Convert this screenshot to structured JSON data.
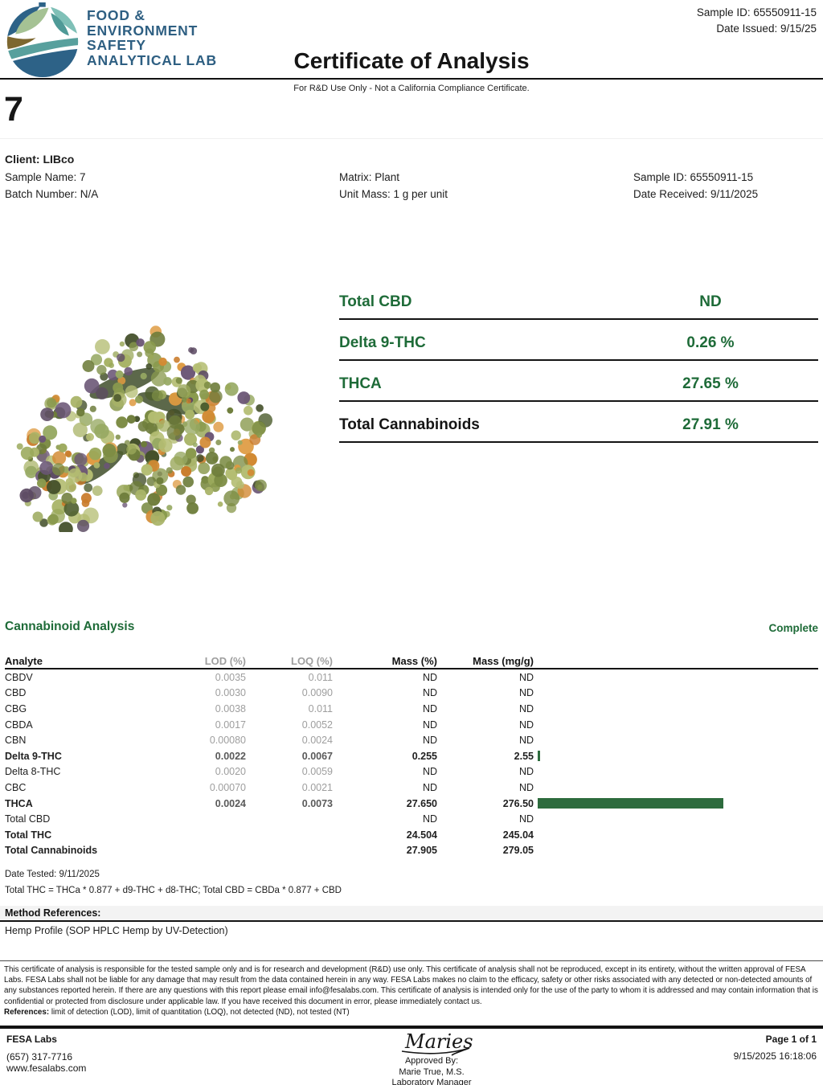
{
  "header": {
    "logo_lines": [
      "FOOD &",
      "ENVIRONMENT",
      "SAFETY",
      "ANALYTICAL LAB"
    ],
    "title": "Certificate of Analysis",
    "subtitle": "For R&D Use Only - Not a California Compliance Certificate.",
    "sample_id": "Sample ID: 65550911-15",
    "date_issued": "Date Issued: 9/15/25"
  },
  "sample": {
    "big_name": "7",
    "client": "Client: LIBco",
    "sample_name": "Sample Name: 7",
    "batch_number": "Batch Number: N/A",
    "matrix": "Matrix: Plant",
    "unit_mass": "Unit Mass: 1 g per unit",
    "sample_id": "Sample ID: 65550911-15",
    "date_received": "Date Received: 9/11/2025"
  },
  "summary": {
    "rows": [
      {
        "label": "Total CBD",
        "value": "ND",
        "label_color": "green"
      },
      {
        "label": "Delta 9-THC",
        "value": "0.26 %",
        "label_color": "green"
      },
      {
        "label": "THCA",
        "value": "27.65 %",
        "label_color": "green"
      },
      {
        "label": "Total Cannabinoids",
        "value": "27.91 %",
        "label_color": "black"
      }
    ]
  },
  "analysis": {
    "section_title": "Cannabinoid Analysis",
    "status": "Complete",
    "columns": [
      "Analyte",
      "LOD (%)",
      "LOQ (%)",
      "Mass (%)",
      "Mass (mg/g)"
    ],
    "rows": [
      {
        "analyte": "CBDV",
        "lod": "0.0035",
        "loq": "0.011",
        "mass_pct": "ND",
        "mass_mgg": "ND",
        "bold": false,
        "bar": 0
      },
      {
        "analyte": "CBD",
        "lod": "0.0030",
        "loq": "0.0090",
        "mass_pct": "ND",
        "mass_mgg": "ND",
        "bold": false,
        "bar": 0
      },
      {
        "analyte": "CBG",
        "lod": "0.0038",
        "loq": "0.011",
        "mass_pct": "ND",
        "mass_mgg": "ND",
        "bold": false,
        "bar": 0
      },
      {
        "analyte": "CBDA",
        "lod": "0.0017",
        "loq": "0.0052",
        "mass_pct": "ND",
        "mass_mgg": "ND",
        "bold": false,
        "bar": 0
      },
      {
        "analyte": "CBN",
        "lod": "0.00080",
        "loq": "0.0024",
        "mass_pct": "ND",
        "mass_mgg": "ND",
        "bold": false,
        "bar": 0
      },
      {
        "analyte": "Delta 9-THC",
        "lod": "0.0022",
        "loq": "0.0067",
        "mass_pct": "0.255",
        "mass_mgg": "2.55",
        "bold": true,
        "bar": 2.55
      },
      {
        "analyte": "Delta 8-THC",
        "lod": "0.0020",
        "loq": "0.0059",
        "mass_pct": "ND",
        "mass_mgg": "ND",
        "bold": false,
        "bar": 0
      },
      {
        "analyte": "CBC",
        "lod": "0.00070",
        "loq": "0.0021",
        "mass_pct": "ND",
        "mass_mgg": "ND",
        "bold": false,
        "bar": 0
      },
      {
        "analyte": "THCA",
        "lod": "0.0024",
        "loq": "0.0073",
        "mass_pct": "27.650",
        "mass_mgg": "276.50",
        "bold": true,
        "bar": 276.5
      },
      {
        "analyte": "Total CBD",
        "lod": "",
        "loq": "",
        "mass_pct": "ND",
        "mass_mgg": "ND",
        "bold": false,
        "bar": 0
      },
      {
        "analyte": "Total THC",
        "lod": "",
        "loq": "",
        "mass_pct": "24.504",
        "mass_mgg": "245.04",
        "bold": true,
        "bar": 0
      },
      {
        "analyte": "Total Cannabinoids",
        "lod": "",
        "loq": "",
        "mass_pct": "27.905",
        "mass_mgg": "279.05",
        "bold": true,
        "bar": 0
      }
    ],
    "date_tested": "Date Tested: 9/11/2025",
    "formula": "Total THC = THCa * 0.877 + d9-THC + d8-THC; Total CBD = CBDa * 0.877 + CBD",
    "method_references_label": "Method References:",
    "method": "Hemp Profile (SOP HPLC Hemp by UV-Detection)"
  },
  "disclaimer": {
    "text": "This certificate of analysis is responsible for the tested sample only and is for research and development (R&D) use only. This certificate of analysis shall not be reproduced, except in its entirety, without the written approval of FESA Labs. FESA Labs shall not be liable for any damage that may result from the data contained herein in any way. FESA Labs makes no claim to the efficacy, safety or other risks associated with any detected or non-detected amounts of any substances reported herein. If there are any questions with this report please email info@fesalabs.com. This certificate of analysis is intended only for the use of the party to whom it is addressed and may contain information that is confidential or protected from disclosure under applicable law. If you have received this document in error, please immediately contact us.",
    "references_label": "References:",
    "references_text": " limit of detection (LOD), limit of quantitation (LOQ), not detected (ND), not tested (NT)"
  },
  "footer": {
    "company": "FESA Labs",
    "phone": "(657) 317-7716",
    "website": "www.fesalabs.com",
    "signature": "Maries",
    "approved_by": "Approved By:",
    "approver": "Marie True, M.S.",
    "approver_title": "Laboratory Manager",
    "page": "Page 1 of 1",
    "timestamp": "9/15/2025 16:18:06"
  },
  "colors": {
    "accent_green": "#1e6b38",
    "bar_green": "#2d6b3d",
    "logo_blue": "#2e5f82"
  }
}
